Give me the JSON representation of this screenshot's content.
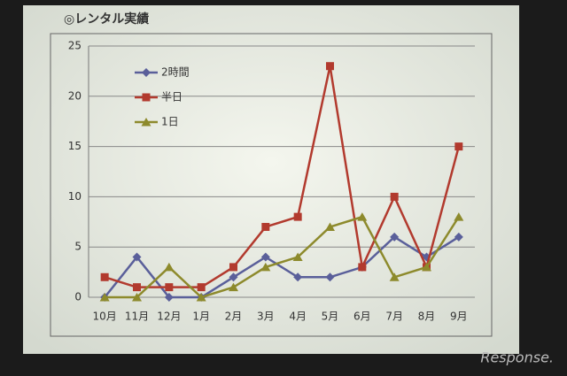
{
  "chart_data": {
    "type": "line",
    "title": "◎レンタル実績",
    "categories": [
      "10月",
      "11月",
      "12月",
      "1月",
      "2月",
      "3月",
      "4月",
      "5月",
      "6月",
      "7月",
      "8月",
      "9月"
    ],
    "series": [
      {
        "name": "2時間",
        "color": "#5a5f9a",
        "marker": "diamond",
        "values": [
          0,
          4,
          0,
          0,
          2,
          4,
          2,
          2,
          3,
          6,
          4,
          6
        ]
      },
      {
        "name": "半日",
        "color": "#b23a2e",
        "marker": "square",
        "values": [
          2,
          1,
          1,
          1,
          3,
          7,
          8,
          23,
          3,
          10,
          3,
          15
        ]
      },
      {
        "name": "1日",
        "color": "#8d8a2c",
        "marker": "triangle",
        "values": [
          0,
          0,
          3,
          0,
          1,
          3,
          4,
          7,
          8,
          2,
          3,
          8
        ]
      }
    ],
    "ylim": [
      0,
      25
    ],
    "yticks": [
      0,
      5,
      10,
      15,
      20,
      25
    ],
    "grid": true,
    "watermark": "Response."
  }
}
